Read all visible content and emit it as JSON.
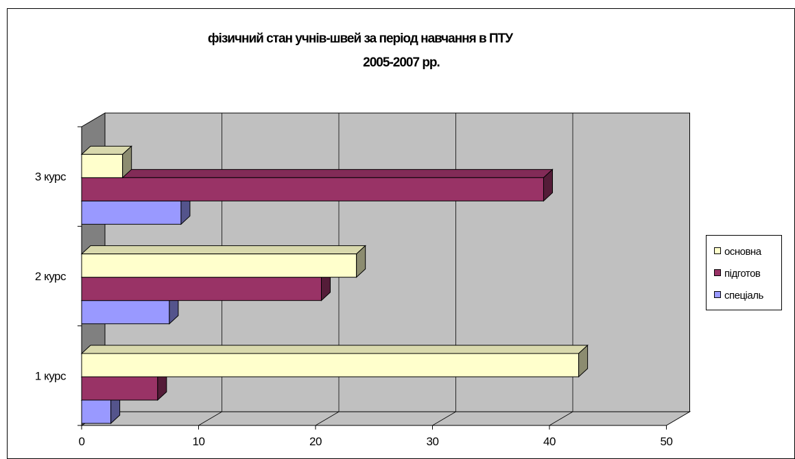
{
  "chart_data": {
    "type": "bar",
    "orientation": "horizontal",
    "three_d": true,
    "title": "фізичний стан учнів-швей за період навчання в ПТУ",
    "subtitle": "2005-2007 рр.",
    "categories": [
      "1 курс",
      "2 курс",
      "3 курс"
    ],
    "series": [
      {
        "name": "основна",
        "color": "#ffffcc",
        "values": [
          42.5,
          23.5,
          3.5
        ]
      },
      {
        "name": "підготов",
        "color": "#993366",
        "values": [
          6.5,
          20.5,
          39.5
        ]
      },
      {
        "name": "спеціаль",
        "color": "#9999ff",
        "values": [
          2.5,
          7.5,
          8.5
        ]
      }
    ],
    "x_ticks": [
      0,
      10,
      20,
      30,
      40,
      50
    ],
    "xlim": [
      0,
      50
    ],
    "grid": true,
    "legend_position": "right",
    "wall_color": "#c0c0c0",
    "floor_color": "#808080"
  }
}
